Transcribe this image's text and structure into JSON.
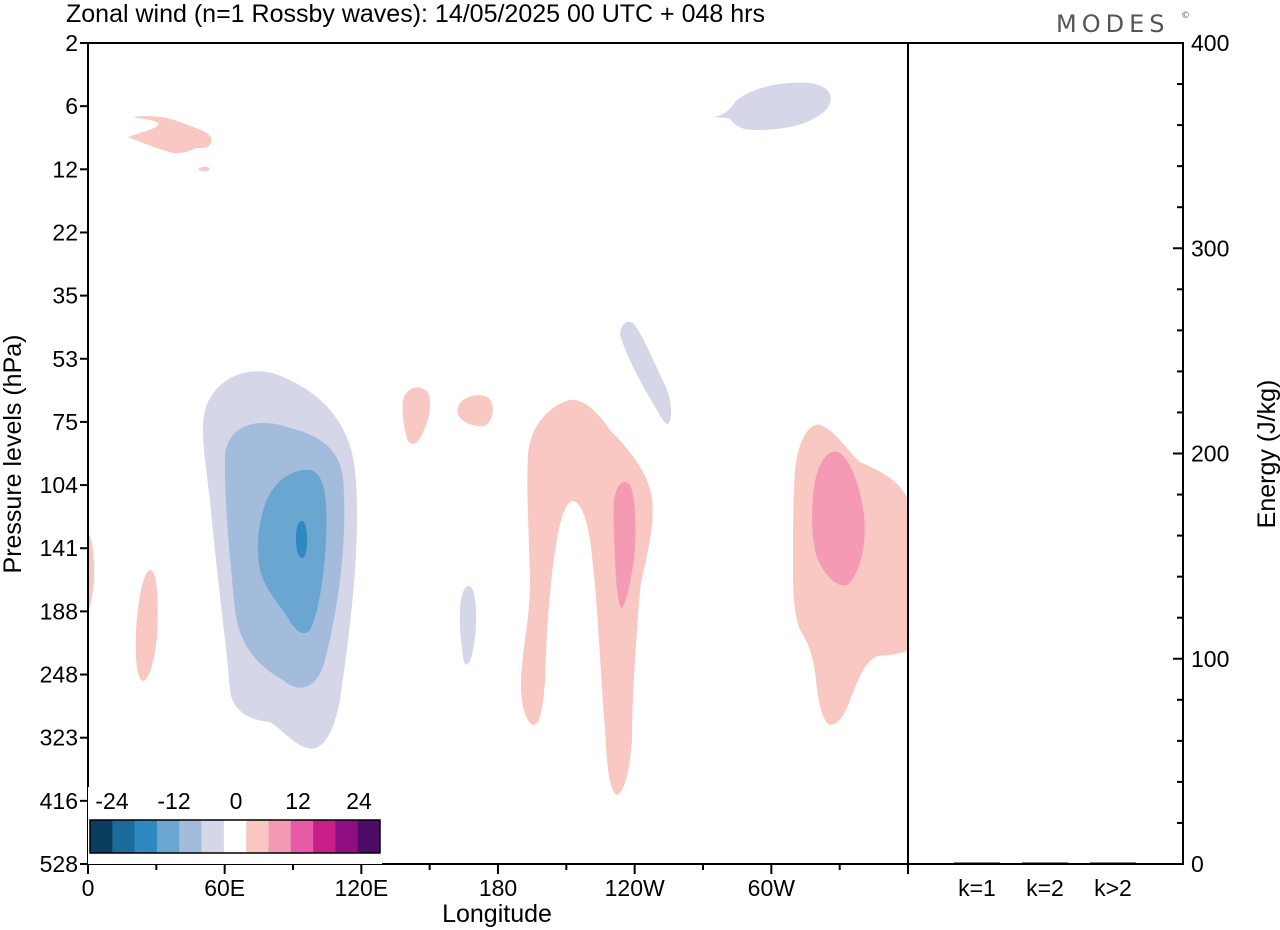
{
  "chart_data": {
    "type": "contour",
    "title": "Zonal wind (n=1 Rossby waves):  14/05/2025  00 UTC  + 048 hrs",
    "brand": "MODES",
    "brand_mark": "©",
    "xlabel": "Longitude",
    "ylabel": "Pressure levels (hPa)",
    "x_ticks": [
      "0",
      "60E",
      "120E",
      "180",
      "120W",
      "60W"
    ],
    "y_ticks": [
      "2",
      "6",
      "12",
      "22",
      "35",
      "53",
      "75",
      "104",
      "141",
      "188",
      "248",
      "323",
      "416",
      "528"
    ],
    "colorbar": {
      "labels": [
        "-24",
        "-12",
        "0",
        "12",
        "24"
      ],
      "colors": [
        "#0b3d5e",
        "#1a6a9a",
        "#2f88c0",
        "#6aa6cf",
        "#a3bcdb",
        "#d5d7e8",
        "#ffffff",
        "#f9c8c3",
        "#f59ab5",
        "#e75aa8",
        "#c81e8a",
        "#8f0f82",
        "#4d0a66"
      ]
    },
    "fields": {
      "neg_level1": "#d5d7e8",
      "neg_level2": "#a3bcdb",
      "neg_level3": "#6aa6cf",
      "neg_level4": "#2f88c0",
      "pos_level1": "#f9c8c3",
      "pos_level2": "#f59ab5"
    },
    "energy_panel": {
      "ylabel": "Energy (J/kg)",
      "ylim": [
        0,
        400
      ],
      "y_ticks": [
        "0",
        "100",
        "200",
        "300",
        "400"
      ],
      "categories": [
        "k=1",
        "k=2",
        "k>2"
      ],
      "values": [
        0,
        0,
        0
      ]
    }
  }
}
